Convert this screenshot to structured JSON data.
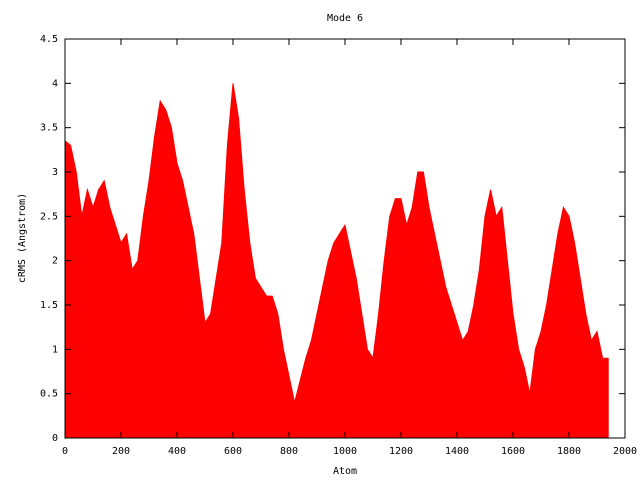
{
  "chart_data": {
    "type": "area",
    "title": "Mode 6",
    "xlabel": "Atom",
    "ylabel": "cRMS (Angstrom)",
    "color": "#ff0000",
    "xlim": [
      0,
      2000
    ],
    "xticks": [
      0,
      200,
      400,
      600,
      800,
      1000,
      1200,
      1400,
      1600,
      1800,
      2000
    ],
    "ylim": [
      0,
      4.5
    ],
    "yticks": [
      0,
      0.5,
      1,
      1.5,
      2,
      2.5,
      3,
      3.5,
      4,
      4.5
    ],
    "x": [
      0,
      20,
      40,
      60,
      80,
      100,
      120,
      140,
      160,
      180,
      200,
      220,
      240,
      260,
      280,
      300,
      320,
      340,
      360,
      380,
      400,
      420,
      440,
      460,
      480,
      500,
      520,
      540,
      560,
      580,
      600,
      620,
      640,
      660,
      680,
      700,
      720,
      740,
      760,
      780,
      800,
      820,
      840,
      860,
      880,
      900,
      920,
      940,
      960,
      980,
      1000,
      1020,
      1040,
      1060,
      1080,
      1100,
      1120,
      1140,
      1160,
      1180,
      1200,
      1220,
      1240,
      1260,
      1280,
      1300,
      1320,
      1340,
      1360,
      1380,
      1400,
      1420,
      1440,
      1460,
      1480,
      1500,
      1520,
      1540,
      1560,
      1580,
      1600,
      1620,
      1640,
      1660,
      1680,
      1700,
      1720,
      1740,
      1760,
      1780,
      1800,
      1820,
      1840,
      1860,
      1880,
      1900,
      1920,
      1940
    ],
    "values": [
      3.35,
      3.3,
      3.0,
      2.5,
      2.8,
      2.6,
      2.8,
      2.9,
      2.6,
      2.4,
      2.2,
      2.3,
      1.9,
      2.0,
      2.5,
      2.9,
      3.4,
      3.8,
      3.7,
      3.5,
      3.1,
      2.9,
      2.6,
      2.3,
      1.8,
      1.3,
      1.4,
      1.8,
      2.2,
      3.3,
      4.0,
      3.6,
      2.8,
      2.2,
      1.8,
      1.7,
      1.6,
      1.6,
      1.4,
      1.0,
      0.7,
      0.4,
      0.65,
      0.9,
      1.1,
      1.4,
      1.7,
      2.0,
      2.2,
      2.3,
      2.4,
      2.1,
      1.8,
      1.4,
      1.0,
      0.9,
      1.4,
      2.0,
      2.5,
      2.7,
      2.7,
      2.4,
      2.6,
      3.0,
      3.0,
      2.6,
      2.3,
      2.0,
      1.7,
      1.5,
      1.3,
      1.1,
      1.2,
      1.5,
      1.9,
      2.5,
      2.8,
      2.5,
      2.6,
      2.0,
      1.4,
      1.0,
      0.8,
      0.5,
      1.0,
      1.2,
      1.5,
      1.9,
      2.3,
      2.6,
      2.5,
      2.2,
      1.8,
      1.4,
      1.1,
      1.2,
      0.9,
      0.9
    ]
  }
}
